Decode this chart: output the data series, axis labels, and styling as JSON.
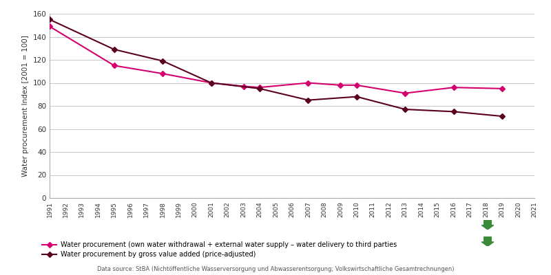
{
  "years_procurement": [
    1991,
    1995,
    1998,
    2001,
    2003,
    2004,
    2007,
    2009,
    2010,
    2013,
    2016,
    2019
  ],
  "values_procurement": [
    149,
    115,
    108,
    100,
    97,
    96,
    100,
    98,
    98,
    91,
    96,
    95
  ],
  "years_gva": [
    1991,
    1995,
    1998,
    2001,
    2004,
    2007,
    2010,
    2013,
    2016,
    2019
  ],
  "values_gva": [
    155,
    129,
    119,
    100,
    95,
    85,
    88,
    77,
    75,
    71
  ],
  "line1_color": "#d4006e",
  "line2_color": "#5a0020",
  "ylabel": "Water procurement Index [2001 = 100]",
  "ylim": [
    0,
    160
  ],
  "yticks": [
    0,
    20,
    40,
    60,
    80,
    100,
    120,
    140,
    160
  ],
  "xlim": [
    1991,
    2021
  ],
  "xtick_start": 1991,
  "xtick_end": 2021,
  "legend1": "Water procurement (own water withdrawal + external water supply – water delivery to third parties",
  "legend2": "Water procurement by gross value added (price-adjusted)",
  "datasource": "Data source: StBA (Nichtöffentliche Wasserversorgung und Abwasserentsorgung; Volkswirtschaftliche Gesamtrechnungen)",
  "background_color": "#ffffff",
  "grid_color": "#c8c8c8",
  "arrow_color": "#3a8a3a"
}
